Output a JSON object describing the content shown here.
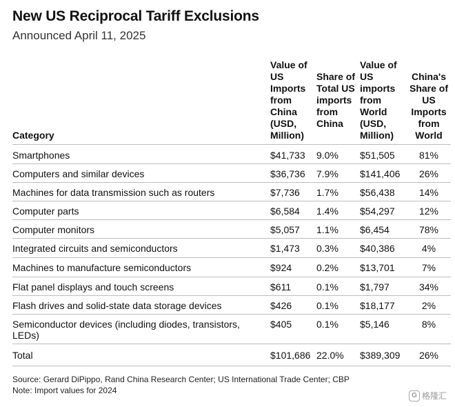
{
  "chart_data": {
    "type": "table",
    "title": "New US Reciprocal Tariff Exclusions",
    "subtitle": "Announced April 11, 2025",
    "columns": [
      "Category",
      "Value of US Imports from China (USD, Million)",
      "Share of Total US imports from China",
      "Value of US imports from World (USD, Million)",
      "China's Share of US Imports from World"
    ],
    "rows": [
      [
        "Smartphones",
        "$41,733",
        "9.0%",
        "$51,505",
        "81%"
      ],
      [
        "Computers and similar devices",
        "$36,736",
        "7.9%",
        "$141,406",
        "26%"
      ],
      [
        "Machines for data transmission such as routers",
        "$7,736",
        "1.7%",
        "$56,438",
        "14%"
      ],
      [
        "Computer parts",
        "$6,584",
        "1.4%",
        "$54,297",
        "12%"
      ],
      [
        "Computer monitors",
        "$5,057",
        "1.1%",
        "$6,454",
        "78%"
      ],
      [
        "Integrated circuits and semiconductors",
        "$1,473",
        "0.3%",
        "$40,386",
        "4%"
      ],
      [
        "Machines to manufacture semiconductors",
        "$924",
        "0.2%",
        "$13,701",
        "7%"
      ],
      [
        "Flat panel displays and touch screens",
        "$611",
        "0.1%",
        "$1,797",
        "34%"
      ],
      [
        "Flash drives and solid-state data storage devices",
        "$426",
        "0.1%",
        "$18,177",
        "2%"
      ],
      [
        "Semiconductor devices (including diodes, transistors, LEDs)",
        "$405",
        "0.1%",
        "$5,146",
        "8%"
      ],
      [
        "Total",
        "$101,686",
        "22.0%",
        "$389,309",
        "26%"
      ]
    ],
    "source": "Source: Gerard DiPippo, Rand China Research Center; US International Trade Center; CBP",
    "note": "Note: Import values for 2024"
  },
  "watermark": {
    "text": "格隆汇",
    "icon": "G"
  }
}
